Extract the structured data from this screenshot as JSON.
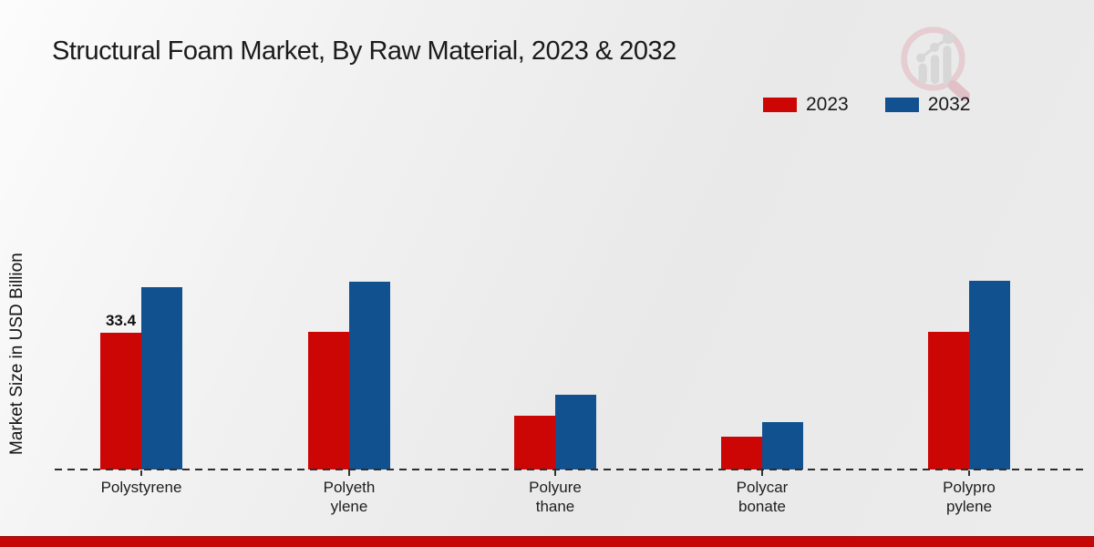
{
  "chart_data": {
    "type": "bar",
    "title": "Structural Foam Market, By Raw Material, 2023 & 2032",
    "ylabel": "Market Size in USD Billion",
    "xlabel": "",
    "categories": [
      "Polystyrene",
      "Polyethylene",
      "Polyurethane",
      "Polycarbonate",
      "Polypropylene"
    ],
    "category_display_lines": [
      [
        "Polystyrene"
      ],
      [
        "Polyeth",
        "ylene"
      ],
      [
        "Polyure",
        "thane"
      ],
      [
        "Polycar",
        "bonate"
      ],
      [
        "Polypro",
        "pylene"
      ]
    ],
    "series": [
      {
        "name": "2023",
        "color": "#cc0605",
        "values": [
          33.4,
          33.6,
          13.2,
          8.0,
          33.6
        ]
      },
      {
        "name": "2032",
        "color": "#12518f",
        "values": [
          44.5,
          45.9,
          18.3,
          11.6,
          46.1
        ]
      }
    ],
    "value_labels": [
      {
        "series": "2023",
        "category": "Polystyrene",
        "text": "33.4"
      }
    ],
    "ylim": [
      0,
      50
    ],
    "grid": false,
    "baseline_style": "dashed",
    "legend_position": "top-right"
  },
  "colors": {
    "series_2023": "#cc0605",
    "series_2032": "#12518f",
    "accent_bottom_bar": "#c40808",
    "text": "#1b1b1b",
    "logo_ring": "#e5c8cd",
    "logo_bars": "#d4d4d4"
  }
}
